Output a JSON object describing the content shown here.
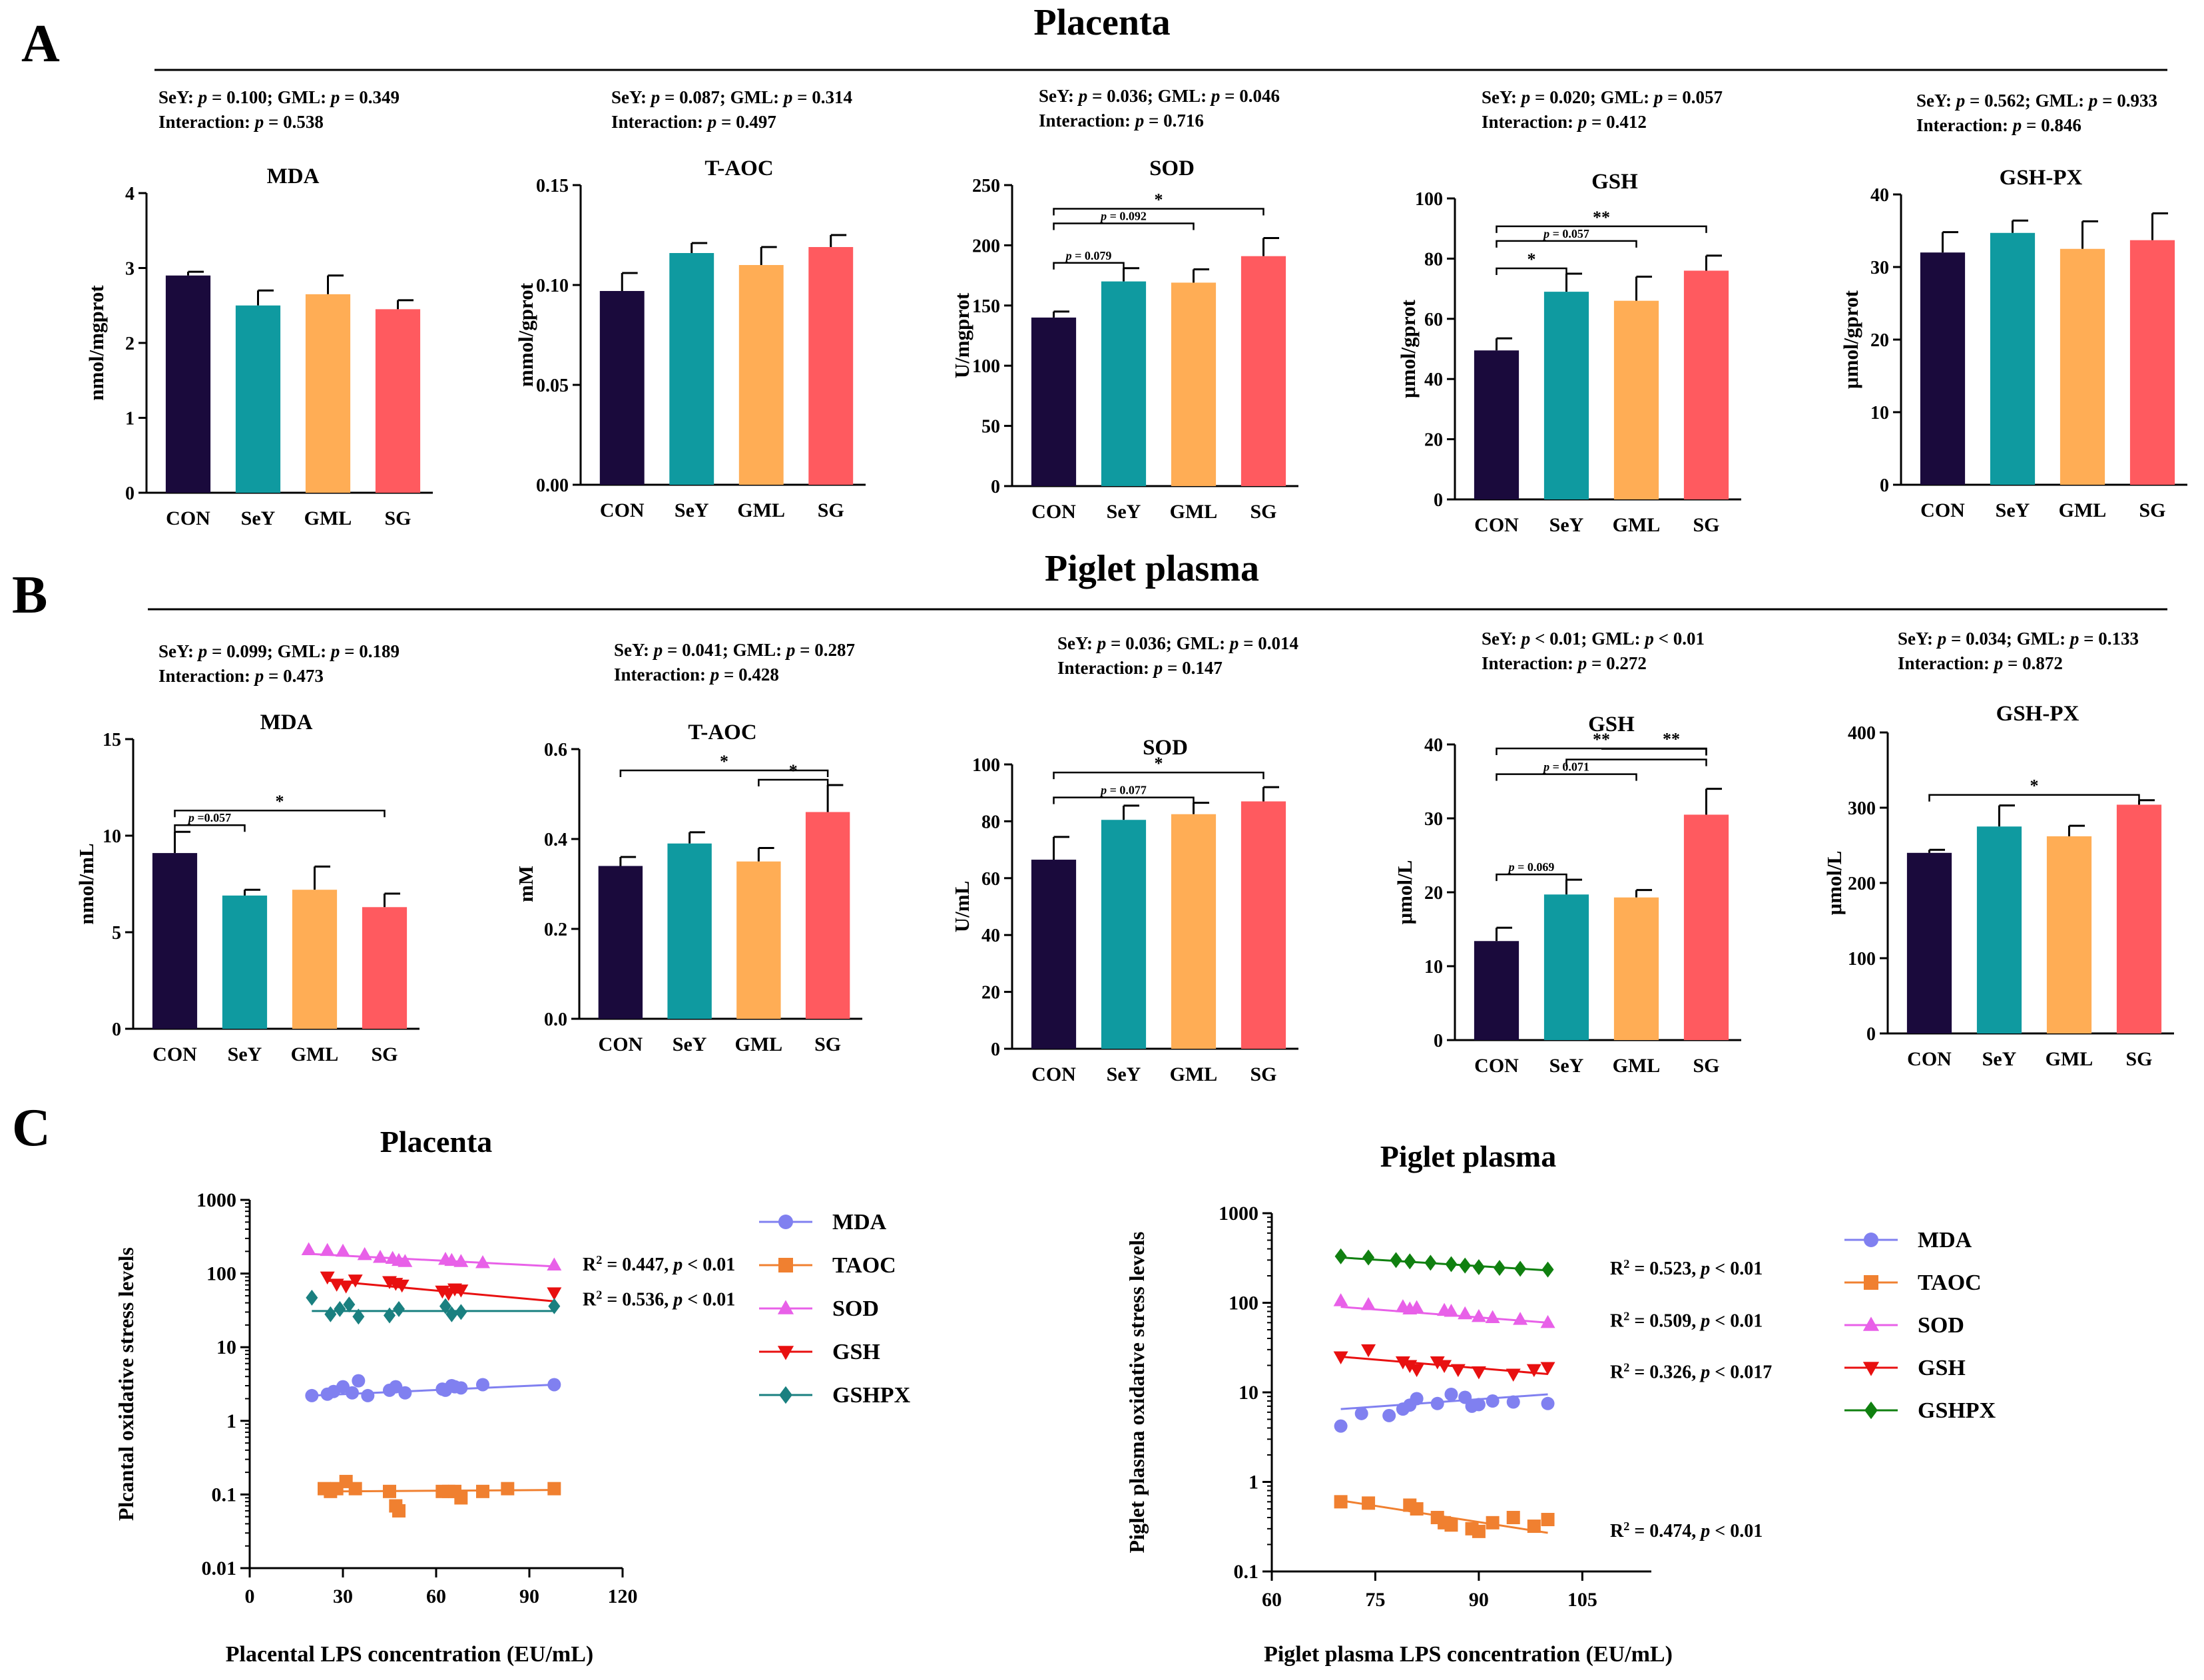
{
  "colors": {
    "CON": "#1a0a3c",
    "SeY": "#0f9aa0",
    "GML": "#ffad55",
    "SG": "#ff5a5f"
  },
  "panels": {
    "A": "A",
    "B": "B",
    "C": "C"
  },
  "headers": {
    "placenta": "Placenta",
    "plasma": "Piglet plasma"
  },
  "stats_labels": {
    "sey": "SeY: ",
    "gml": "GML: ",
    "inter": "Interaction: ",
    "p": "p",
    "eq": " = ",
    "lt": " < "
  },
  "chart_data": [
    {
      "id": "A-MDA",
      "type": "bar",
      "title": "MDA",
      "ylabel": "nmol/mgprot",
      "ylim": [
        0,
        4
      ],
      "ticks": [
        "0",
        "1",
        "2",
        "3",
        "4"
      ],
      "categories": [
        "CON",
        "SeY",
        "GML",
        "SG"
      ],
      "values": [
        2.9,
        2.5,
        2.65,
        2.45
      ],
      "errors": [
        0.05,
        0.2,
        0.25,
        0.12
      ],
      "stats": {
        "sey": "0.100",
        "gml": "0.349",
        "inter": "0.538"
      },
      "brackets": []
    },
    {
      "id": "A-TAOC",
      "type": "bar",
      "title": "T-AOC",
      "ylabel": "mmol/gprot",
      "ylim": [
        0,
        0.15
      ],
      "ticks": [
        "0.00",
        "0.05",
        "0.10",
        "0.15"
      ],
      "categories": [
        "CON",
        "SeY",
        "GML",
        "SG"
      ],
      "values": [
        0.097,
        0.116,
        0.11,
        0.119
      ],
      "errors": [
        0.009,
        0.005,
        0.009,
        0.006
      ],
      "stats": {
        "sey": "0.087",
        "gml": "0.314",
        "inter": "0.497"
      },
      "brackets": []
    },
    {
      "id": "A-SOD",
      "type": "bar",
      "title": "SOD",
      "ylabel": "U/mgprot",
      "ylim": [
        0,
        250
      ],
      "ticks": [
        "0",
        "50",
        "100",
        "150",
        "200",
        "250"
      ],
      "categories": [
        "CON",
        "SeY",
        "GML",
        "SG"
      ],
      "values": [
        140,
        170,
        169,
        191
      ],
      "errors": [
        5,
        11,
        11,
        15
      ],
      "stats": {
        "sey": "0.036",
        "gml": "0.046",
        "inter": "0.716"
      },
      "brackets": [
        {
          "from": 0,
          "to": 1,
          "level": 1,
          "label": "p = 0.079"
        },
        {
          "from": 0,
          "to": 2,
          "level": 2,
          "label": "p = 0.092"
        },
        {
          "from": 0,
          "to": 3,
          "level": 3,
          "label": "*"
        }
      ]
    },
    {
      "id": "A-GSH",
      "type": "bar",
      "title": "GSH",
      "ylabel": "μmol/gprot",
      "ylim": [
        0,
        100
      ],
      "ticks": [
        "0",
        "20",
        "40",
        "60",
        "80",
        "100"
      ],
      "categories": [
        "CON",
        "SeY",
        "GML",
        "SG"
      ],
      "values": [
        49.5,
        69,
        66,
        76
      ],
      "errors": [
        4,
        6,
        8,
        5
      ],
      "stats": {
        "sey": "0.020",
        "gml": "0.057",
        "inter": "0.412"
      },
      "brackets": [
        {
          "from": 0,
          "to": 1,
          "level": 1,
          "label": "*"
        },
        {
          "from": 0,
          "to": 2,
          "level": 2,
          "label": "p = 0.057"
        },
        {
          "from": 0,
          "to": 3,
          "level": 3,
          "label": "**"
        }
      ]
    },
    {
      "id": "A-GSHPX",
      "type": "bar",
      "title": "GSH-PX",
      "ylabel": "μmol/gprot",
      "ylim": [
        0,
        40
      ],
      "ticks": [
        "0",
        "10",
        "20",
        "30",
        "40"
      ],
      "categories": [
        "CON",
        "SeY",
        "GML",
        "SG"
      ],
      "values": [
        32,
        34.7,
        32.5,
        33.7
      ],
      "errors": [
        2.8,
        1.7,
        3.8,
        3.7
      ],
      "stats": {
        "sey": "0.562",
        "gml": "0.933",
        "inter": "0.846"
      },
      "brackets": []
    },
    {
      "id": "B-MDA",
      "type": "bar",
      "title": "MDA",
      "ylabel": "nmol/mL",
      "ylim": [
        0,
        15
      ],
      "ticks": [
        "0",
        "5",
        "10",
        "15"
      ],
      "categories": [
        "CON",
        "SeY",
        "GML",
        "SG"
      ],
      "values": [
        9.1,
        6.9,
        7.2,
        6.3
      ],
      "errors": [
        1.1,
        0.3,
        1.2,
        0.7
      ],
      "stats": {
        "sey": "0.099",
        "gml": "0.189",
        "inter": "0.473"
      },
      "brackets": [
        {
          "from": 0,
          "to": 1,
          "level": 1,
          "label": "p =0.057"
        },
        {
          "from": 0,
          "to": 3,
          "level": 2,
          "label": "*"
        }
      ]
    },
    {
      "id": "B-TAOC",
      "type": "bar",
      "title": "T-AOC",
      "ylabel": "mM",
      "ylim": [
        0,
        0.6
      ],
      "ticks": [
        "0.0",
        "0.2",
        "0.4",
        "0.6"
      ],
      "categories": [
        "CON",
        "SeY",
        "GML",
        "SG"
      ],
      "values": [
        0.34,
        0.39,
        0.35,
        0.46
      ],
      "errors": [
        0.02,
        0.025,
        0.03,
        0.06
      ],
      "stats": {
        "sey": "0.041",
        "gml": "0.287",
        "inter": "0.428"
      },
      "brackets": [
        {
          "from": 2,
          "to": 3,
          "level": 1,
          "label": "*"
        },
        {
          "from": 0,
          "to": 3,
          "level": 2,
          "label": "*"
        }
      ]
    },
    {
      "id": "B-SOD",
      "type": "bar",
      "title": "SOD",
      "ylabel": "U/mL",
      "ylim": [
        0,
        100
      ],
      "ticks": [
        "0",
        "20",
        "40",
        "60",
        "80",
        "100"
      ],
      "categories": [
        "CON",
        "SeY",
        "GML",
        "SG"
      ],
      "values": [
        66.5,
        80.5,
        82.5,
        87
      ],
      "errors": [
        8,
        5,
        4,
        5
      ],
      "stats": {
        "sey": "0.036",
        "gml": "0.014",
        "inter": "0.147"
      },
      "brackets": [
        {
          "from": 0,
          "to": 2,
          "level": 1,
          "label": "p = 0.077"
        },
        {
          "from": 0,
          "to": 3,
          "level": 2,
          "label": "*"
        }
      ]
    },
    {
      "id": "B-GSH",
      "type": "bar",
      "title": "GSH",
      "ylabel": "μmol/L",
      "ylim": [
        0,
        40
      ],
      "ticks": [
        "0",
        "10",
        "20",
        "30",
        "40"
      ],
      "categories": [
        "CON",
        "SeY",
        "GML",
        "SG"
      ],
      "values": [
        13.4,
        19.7,
        19.3,
        30.5
      ],
      "errors": [
        1.8,
        2,
        1,
        3.5
      ],
      "stats": {
        "sey": "< 0.01",
        "gml": "< 0.01",
        "inter": "0.272"
      },
      "brackets": [
        {
          "from": 0,
          "to": 1,
          "level": 1,
          "label": "p = 0.069"
        },
        {
          "from": 0,
          "to": 2,
          "level": 2,
          "label": "p = 0.071"
        },
        {
          "from": 1,
          "to": 3,
          "level": 3,
          "label": "",
          "split": 2,
          "splitLabel": "**"
        },
        {
          "from": 0,
          "to": 3,
          "level": 4,
          "label": "**"
        }
      ]
    },
    {
      "id": "B-GSHPX",
      "type": "bar",
      "title": "GSH-PX",
      "ylabel": "μmol/L",
      "ylim": [
        0,
        400
      ],
      "ticks": [
        "0",
        "100",
        "200",
        "300",
        "400"
      ],
      "categories": [
        "CON",
        "SeY",
        "GML",
        "SG"
      ],
      "values": [
        240,
        275,
        262,
        304
      ],
      "errors": [
        4,
        28,
        14,
        6
      ],
      "stats": {
        "sey": "0.034",
        "gml": "0.133",
        "inter": "0.872"
      },
      "brackets": [
        {
          "from": 0,
          "to": 3,
          "level": 1,
          "label": "*"
        }
      ]
    },
    {
      "id": "C-placenta",
      "type": "scatter",
      "title": "Placenta",
      "xlabel": "Placental LPS concentration (EU/mL)",
      "ylabel": "Plcantal oxidative stress levels",
      "xlim": [
        0,
        120
      ],
      "xticks": [
        "0",
        "30",
        "60",
        "90",
        "120"
      ],
      "ylim_log": [
        0.01,
        1000
      ],
      "yticks": [
        "0.01",
        "0.1",
        "1",
        "10",
        "100",
        "1000"
      ],
      "series": [
        {
          "name": "MDA",
          "color": "#8080f0",
          "marker": "circle",
          "x": [
            20,
            25,
            27,
            30,
            33,
            35,
            38,
            45,
            47,
            50,
            62,
            63,
            65,
            66,
            68,
            75,
            98
          ],
          "y": [
            2.2,
            2.3,
            2.5,
            2.9,
            2.4,
            3.5,
            2.2,
            2.6,
            2.9,
            2.4,
            2.7,
            2.6,
            3.0,
            2.9,
            2.8,
            3.1,
            3.1
          ],
          "fit": [
            [
              20,
              2.2
            ],
            [
              98,
              3.1
            ]
          ]
        },
        {
          "name": "TAOC",
          "color": "#f08030",
          "marker": "square",
          "x": [
            24,
            26,
            28,
            31,
            34,
            45,
            47,
            48,
            62,
            64,
            66,
            68,
            75,
            83,
            98
          ],
          "y": [
            0.12,
            0.11,
            0.12,
            0.15,
            0.12,
            0.11,
            0.07,
            0.06,
            0.11,
            0.11,
            0.11,
            0.09,
            0.11,
            0.12,
            0.12
          ],
          "fit": [
            [
              24,
              0.11
            ],
            [
              98,
              0.115
            ]
          ]
        },
        {
          "name": "SOD",
          "color": "#e860e8",
          "marker": "tri-up",
          "x": [
            19,
            25,
            30,
            37,
            42,
            46,
            48,
            50,
            63,
            65,
            68,
            75,
            98
          ],
          "y": [
            210,
            205,
            200,
            180,
            165,
            160,
            150,
            145,
            155,
            150,
            145,
            140,
            130
          ],
          "fit": [
            [
              19,
              185
            ],
            [
              98,
              125
            ]
          ],
          "annot": "R² = 0.447, p < 0.01"
        },
        {
          "name": "GSH",
          "color": "#e81010",
          "marker": "tri-down",
          "x": [
            25,
            28,
            31,
            34,
            45,
            47,
            49,
            62,
            64,
            66,
            68,
            98
          ],
          "y": [
            90,
            72,
            68,
            82,
            78,
            74,
            70,
            58,
            54,
            62,
            60,
            55
          ],
          "fit": [
            [
              25,
              80
            ],
            [
              98,
              42
            ]
          ],
          "annot": "R² = 0.536, p < 0.01"
        },
        {
          "name": "GSHPX",
          "color": "#1a8080",
          "marker": "diamond",
          "x": [
            20,
            26,
            29,
            32,
            35,
            45,
            48,
            63,
            65,
            68,
            98
          ],
          "y": [
            47,
            28,
            33,
            38,
            26,
            27,
            33,
            36,
            28,
            30,
            36
          ],
          "fit": [
            [
              20,
              31
            ],
            [
              98,
              31
            ]
          ]
        }
      ]
    },
    {
      "id": "C-plasma",
      "type": "scatter",
      "title": "Piglet plasma",
      "xlabel": "Piglet plasma  LPS concentration (EU/mL)",
      "ylabel": "Piglet plasma oxidative stress levels",
      "xlim": [
        60,
        115
      ],
      "xticks": [
        "60",
        "75",
        "90",
        "105"
      ],
      "ylim_log": [
        0.1,
        1000
      ],
      "yticks": [
        "0.1",
        "1",
        "10",
        "100",
        "1000"
      ],
      "series": [
        {
          "name": "MDA",
          "color": "#8080f0",
          "marker": "circle",
          "x": [
            70,
            73,
            77,
            79,
            80,
            81,
            84,
            86,
            88,
            89,
            90,
            92,
            95,
            100
          ],
          "y": [
            4.2,
            5.8,
            5.5,
            6.5,
            7.2,
            8.5,
            7.5,
            9.5,
            8.8,
            7,
            7.3,
            8,
            7.8,
            7.5
          ],
          "fit": [
            [
              70,
              6.5
            ],
            [
              100,
              9.5
            ]
          ]
        },
        {
          "name": "TAOC",
          "color": "#f08030",
          "marker": "square",
          "x": [
            70,
            74,
            80,
            81,
            84,
            85,
            86,
            89,
            90,
            92,
            95,
            98,
            100
          ],
          "y": [
            0.6,
            0.58,
            0.55,
            0.5,
            0.4,
            0.35,
            0.33,
            0.3,
            0.28,
            0.35,
            0.4,
            0.32,
            0.38
          ],
          "fit": [
            [
              70,
              0.62
            ],
            [
              100,
              0.27
            ]
          ],
          "annot": "R² = 0.474,  p < 0.01"
        },
        {
          "name": "SOD",
          "color": "#e860e8",
          "marker": "tri-up",
          "x": [
            70,
            74,
            79,
            80,
            81,
            85,
            86,
            88,
            90,
            92,
            96,
            100
          ],
          "y": [
            105,
            95,
            90,
            85,
            88,
            82,
            80,
            75,
            70,
            68,
            65,
            60
          ],
          "fit": [
            [
              70,
              90
            ],
            [
              100,
              60
            ]
          ],
          "annot": "R² = 0.509,  p < 0.01"
        },
        {
          "name": "GSH",
          "color": "#e81010",
          "marker": "tri-down",
          "x": [
            70,
            74,
            79,
            80,
            81,
            84,
            85,
            87,
            90,
            95,
            98,
            100
          ],
          "y": [
            25,
            30,
            22,
            20,
            18,
            22,
            20,
            18,
            17,
            16,
            18,
            19
          ],
          "fit": [
            [
              70,
              25
            ],
            [
              100,
              16
            ]
          ],
          "annot": "R² = 0.326,  p < 0.017"
        },
        {
          "name": "GSHPX",
          "color": "#108010",
          "marker": "diamond",
          "x": [
            70,
            74,
            78,
            80,
            83,
            86,
            88,
            90,
            93,
            96,
            100
          ],
          "y": [
            330,
            320,
            300,
            290,
            280,
            270,
            260,
            250,
            245,
            240,
            235
          ],
          "fit": [
            [
              70,
              320
            ],
            [
              100,
              230
            ]
          ],
          "annot": "R² = 0.523,  p < 0.01"
        }
      ]
    }
  ]
}
